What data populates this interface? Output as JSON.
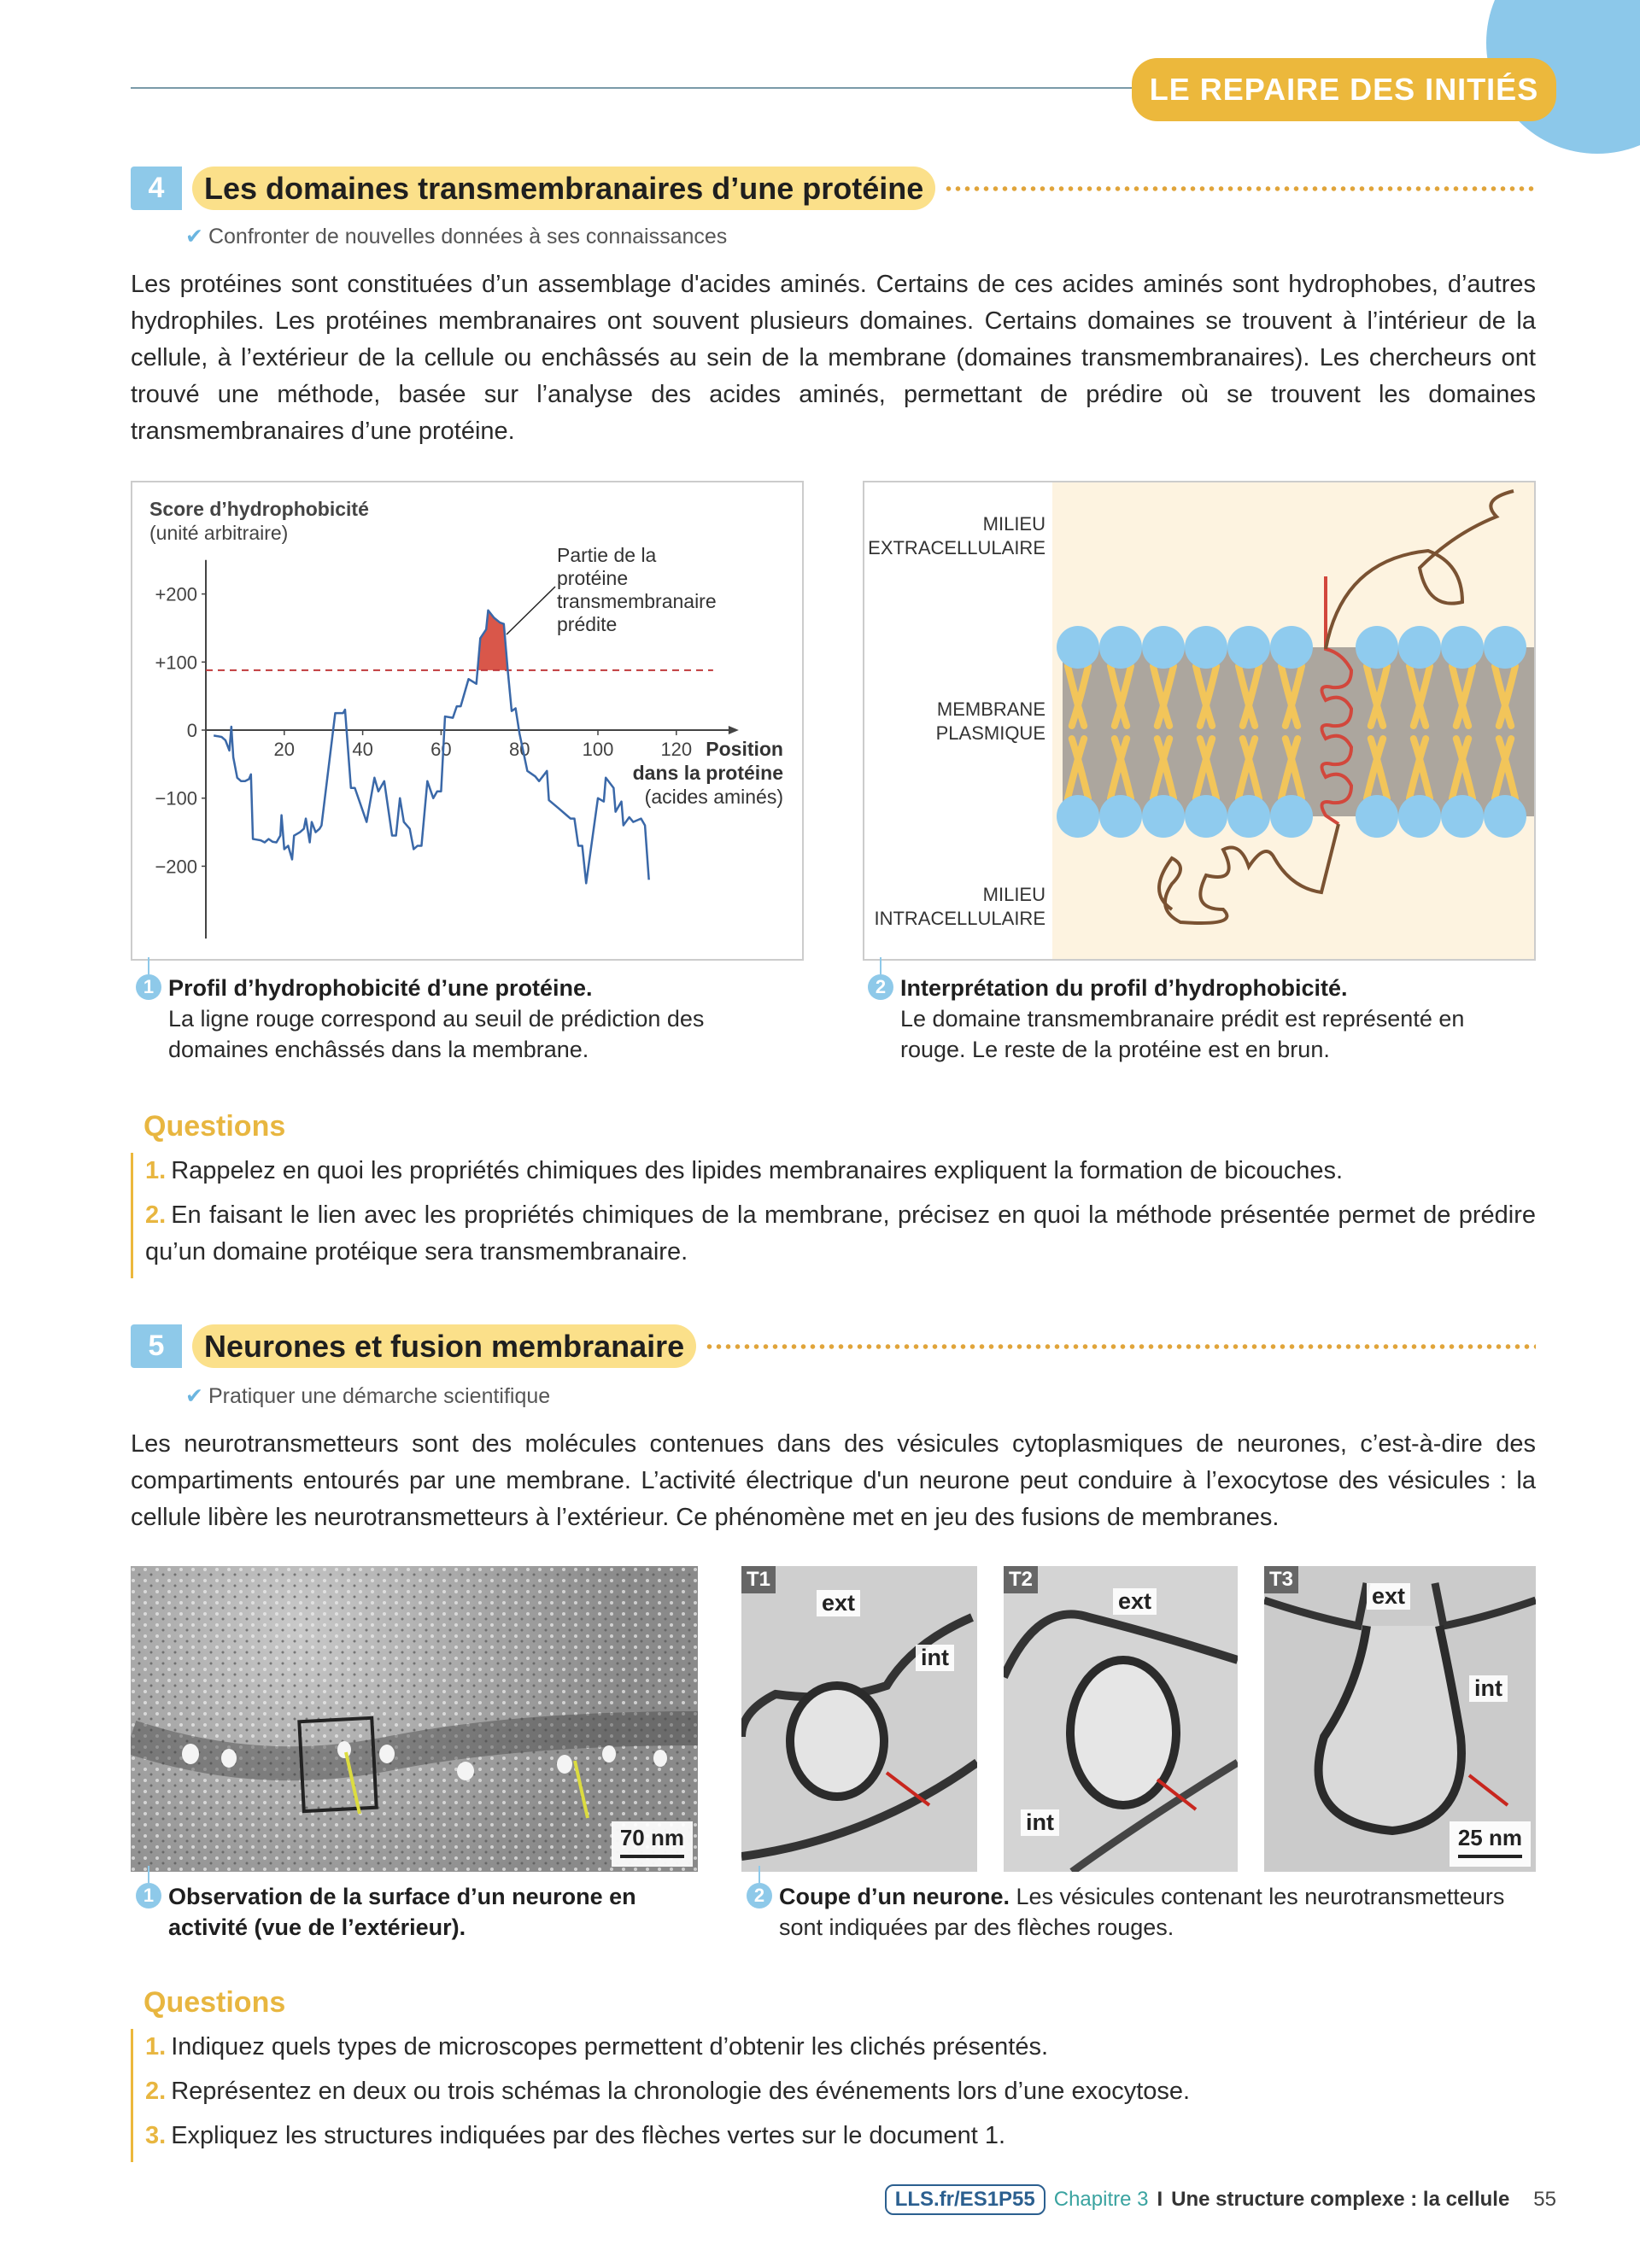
{
  "header": {
    "badge": "LE REPAIRE DES INITIÉS"
  },
  "section4": {
    "number": "4",
    "title": "Les domaines transmembranaires d’une protéine",
    "skill": "Confronter de nouvelles données à ses connaissances",
    "intro": "Les protéines sont constituées d’un assemblage d'acides aminés. Certains de ces acides aminés sont hydrophobes, d’autres hydrophiles. Les protéines membranaires ont souvent plusieurs domaines. Certains domaines se trouvent à l’intérieur de la cellule, à l’extérieur de la cellule ou enchâssés au sein de la membrane (domaines transmembranaires). Les chercheurs ont trouvé une méthode, basée sur l’analyse des acides aminés, permettant de prédire où se trouvent les domaines transmembranaires d’une protéine.",
    "doc1": {
      "num": "1",
      "title": "Profil d’hydrophobicité d’une protéine.",
      "text": "La ligne rouge correspond au seuil de prédiction des domaines enchâssés dans la membrane."
    },
    "doc2": {
      "num": "2",
      "title": "Interprétation du profil d’hydrophobicité.",
      "text": "Le domaine transmembranaire prédit est représenté en rouge. Le reste de la protéine est en brun.",
      "labels": {
        "extra1": "MILIEU",
        "extra2": "EXTRACELLULAIRE",
        "mem1": "MEMBRANE",
        "mem2": "PLASMIQUE",
        "intra1": "MILIEU",
        "intra2": "INTRACELLULAIRE"
      },
      "colors": {
        "background": "#fdf3e0",
        "heads": "#8fcbee",
        "tails": "#f2c55a",
        "core": "#aca69e",
        "helix": "#d2473c",
        "protein": "#7a5232"
      }
    },
    "questions_title": "Questions",
    "questions": [
      {
        "n": "1.",
        "text": "Rappelez en quoi les propriétés chimiques des lipides membranaires expliquent la formation de bicouches."
      },
      {
        "n": "2.",
        "text": "En faisant le lien avec les propriétés chimiques de la membrane, précisez en quoi la méthode présentée permet de prédire qu’un domaine protéique sera transmembranaire."
      }
    ]
  },
  "chart_data": {
    "type": "line",
    "ylabel": "Score d’hydrophobicité",
    "ylabel_unit": "(unité arbitraire)",
    "xlabel_bold": "Position",
    "xlabel_bold2": "dans la protéine",
    "xlabel_unit": "(acides aminés)",
    "annotation": [
      "Partie de la",
      "protéine",
      "transmembranaire",
      "prédite"
    ],
    "xticks": [
      "20",
      "40",
      "60",
      "80",
      "100",
      "120"
    ],
    "xtick_values": [
      20,
      40,
      60,
      80,
      100,
      120
    ],
    "yticks": [
      "+200",
      "+100",
      "0",
      "−100",
      "−200"
    ],
    "ytick_values": [
      200,
      100,
      0,
      -100,
      -200
    ],
    "xlim": [
      0,
      132
    ],
    "ylim": [
      -300,
      250
    ],
    "threshold": 88,
    "colors": {
      "line": "#3a68a8",
      "threshold": "#c0393b",
      "fill": "#d9574a"
    },
    "x": [
      2,
      4,
      5,
      6,
      6.5,
      7,
      8,
      9,
      10,
      11,
      11.5,
      12,
      13,
      14,
      15,
      16,
      17,
      18,
      19,
      19.3,
      20,
      21,
      22,
      22.5,
      24,
      25,
      25.5,
      26.5,
      27,
      28,
      29,
      29.5,
      33,
      35,
      35.5,
      37,
      38,
      41,
      43,
      44,
      45.5,
      47.5,
      48.5,
      49.5,
      50.5,
      52,
      53,
      54,
      55,
      56.5,
      58,
      59,
      60,
      61,
      63,
      64,
      65,
      67,
      69,
      70,
      71.5,
      72,
      73.5,
      75,
      76,
      77,
      78,
      79,
      80,
      82,
      84,
      85,
      87,
      87.5,
      90,
      92,
      93,
      94,
      95,
      96,
      97,
      100,
      101.5,
      102,
      104,
      104.5,
      106,
      106.5,
      108,
      109,
      111,
      112,
      113
    ],
    "y": [
      -8,
      -10,
      -15,
      -30,
      5,
      -40,
      -70,
      -75,
      -75,
      -72,
      -65,
      -160,
      -161,
      -162,
      -165,
      -160,
      -164,
      -165,
      -155,
      -125,
      -175,
      -170,
      -190,
      -155,
      -150,
      -145,
      -130,
      -165,
      -135,
      -150,
      -145,
      -140,
      25,
      25,
      30,
      -85,
      -85,
      -135,
      -70,
      -90,
      -75,
      -155,
      -155,
      -100,
      -135,
      -145,
      -175,
      -170,
      -170,
      -75,
      -100,
      -90,
      -90,
      20,
      18,
      35,
      35,
      75,
      68,
      135,
      148,
      176,
      165,
      158,
      156,
      88,
      28,
      32,
      -5,
      -60,
      -68,
      -75,
      -60,
      -103,
      -115,
      -125,
      -130,
      -130,
      -170,
      -170,
      -225,
      -100,
      -105,
      -70,
      -85,
      -120,
      -105,
      -140,
      -128,
      -135,
      -130,
      -140,
      -220
    ]
  },
  "section5": {
    "number": "5",
    "title": "Neurones et fusion membranaire",
    "skill": "Pratiquer une démarche scientifique",
    "intro": "Les neurotransmetteurs sont des molécules contenues dans des vésicules cytoplasmiques de neurones, c’est-à-dire des compartiments entourés par une membrane. L’activité électrique d'un neurone peut conduire à l’exocytose des vésicules : la cellule libère les neurotransmetteurs à l’extérieur. Ce phénomène met en jeu des fusions de membranes.",
    "photo1": {
      "scale": "70 nm"
    },
    "photos": [
      {
        "tag": "T1",
        "ext": "ext",
        "int": "int"
      },
      {
        "tag": "T2",
        "ext": "ext",
        "int": "int"
      },
      {
        "tag": "T3",
        "ext": "ext",
        "int": "int",
        "scale": "25 nm"
      }
    ],
    "doc1": {
      "num": "1",
      "title": "Observation de la surface d’un neurone en activité (vue de l’extérieur)."
    },
    "doc2": {
      "num": "2",
      "title": "Coupe d’un neurone.",
      "text": "Les vésicules contenant les neurotransmetteurs sont indiquées par des flèches rouges."
    },
    "questions_title": "Questions",
    "questions": [
      {
        "n": "1.",
        "text": "Indiquez quels types de microscopes permettent d’obtenir les clichés présentés."
      },
      {
        "n": "2.",
        "text": "Représentez en deux ou trois schémas la chronologie des événements lors d’une exocytose."
      },
      {
        "n": "3.",
        "text": "Expliquez les structures indiquées par des flèches vertes sur le document 1."
      }
    ]
  },
  "footer": {
    "link": "LLS.fr/ES1P55",
    "chapter": "Chapitre 3",
    "separator": "I",
    "chapter_title": "Une structure complexe : la cellule",
    "page": "55"
  }
}
